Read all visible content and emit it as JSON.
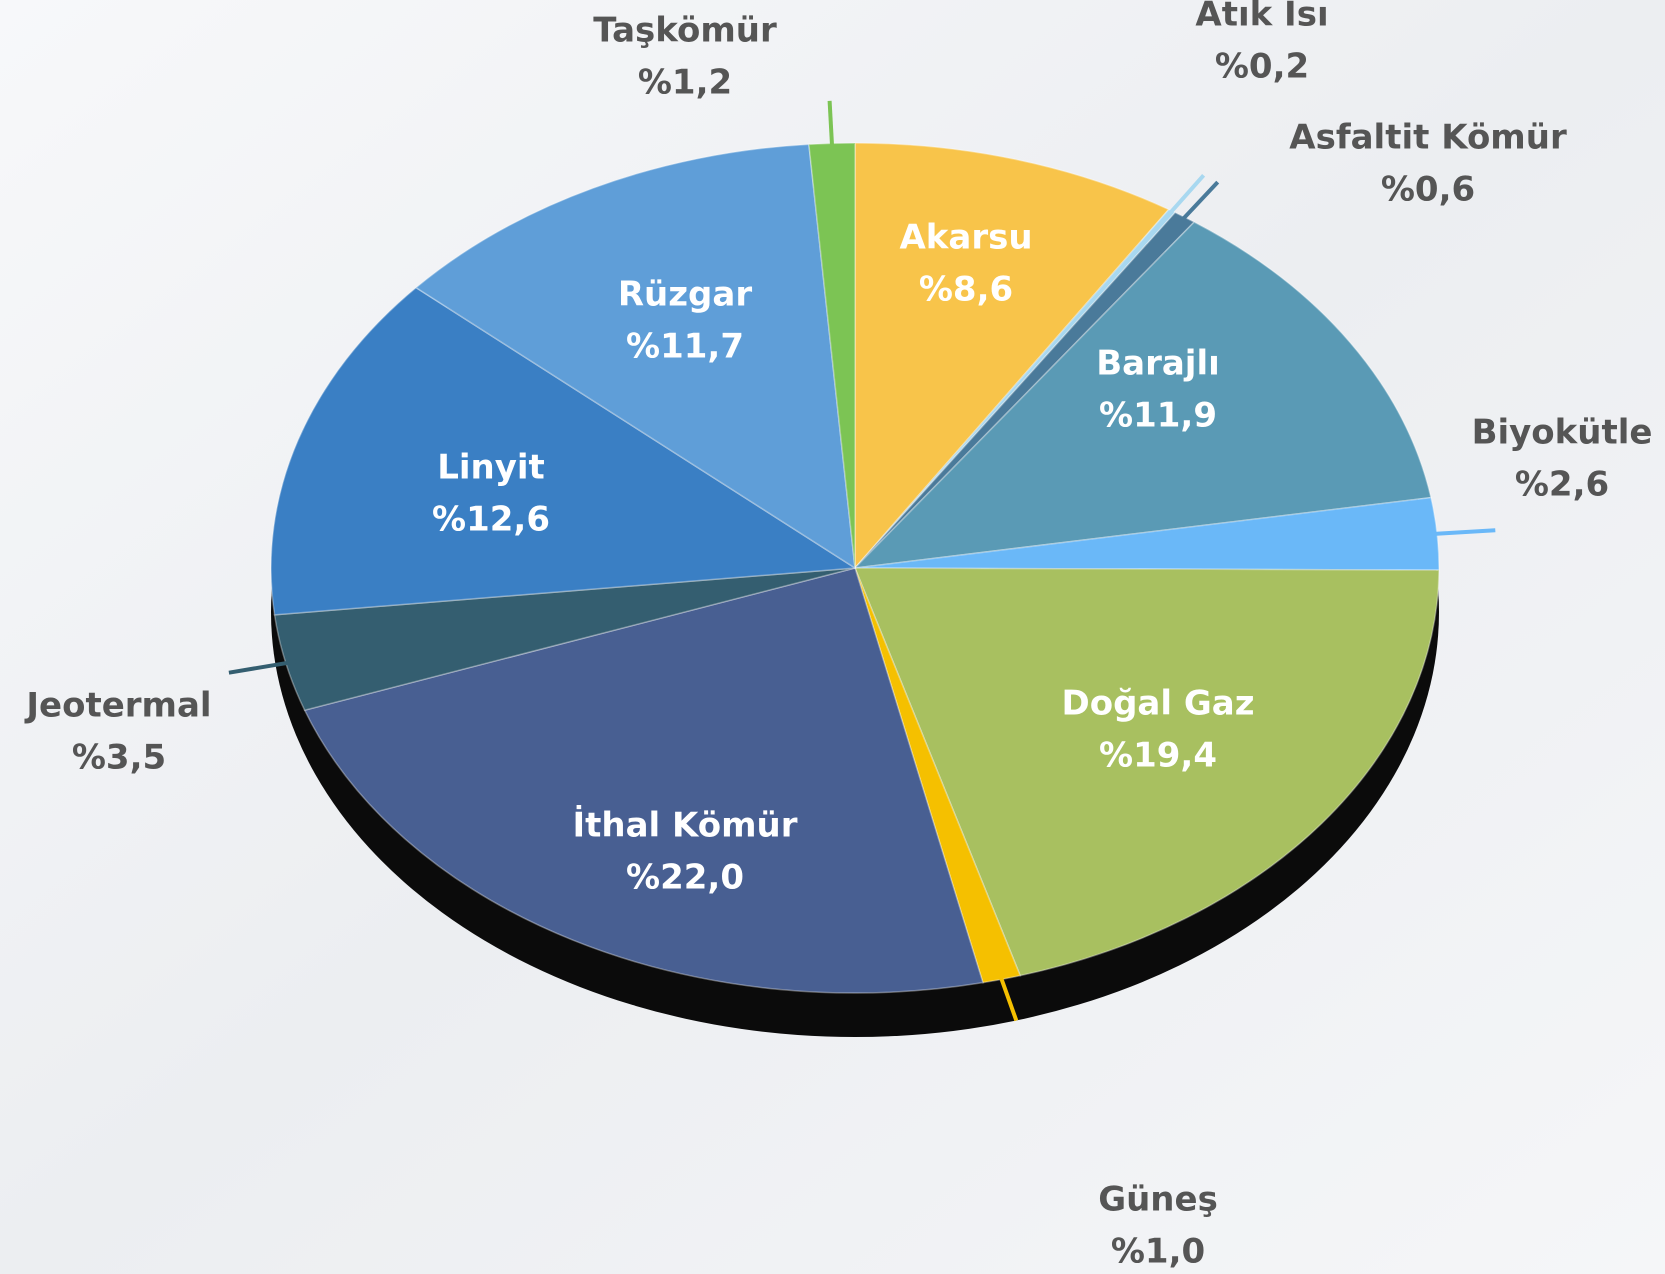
{
  "chart_data": {
    "type": "pie",
    "categories": [
      "Akarsu",
      "Atık Isı",
      "Asfaltit Kömür",
      "Barajlı",
      "Biyokütle",
      "Doğal Gaz",
      "Güneş",
      "İthal Kömür",
      "Jeotermal",
      "Linyit",
      "Rüzgar",
      "Taşkömür"
    ],
    "values": [
      8.6,
      0.2,
      0.6,
      11.9,
      2.6,
      19.4,
      1.0,
      22.0,
      3.5,
      12.6,
      11.7,
      1.2
    ],
    "value_labels": [
      "%8,6",
      "%0,2",
      "%0,6",
      "%11,9",
      "%2,6",
      "%19,4",
      "%1,0",
      "%22,0",
      "%3,5",
      "%12,6",
      "%11,7",
      "%1,2"
    ],
    "colors": [
      "#f8c44a",
      "#a8d8f0",
      "#4a7a9a",
      "#5a9ab5",
      "#6ab8f8",
      "#a8c060",
      "#f5c000",
      "#485f92",
      "#345e70",
      "#3a7fc4",
      "#5f9ed8",
      "#7cc454"
    ]
  }
}
